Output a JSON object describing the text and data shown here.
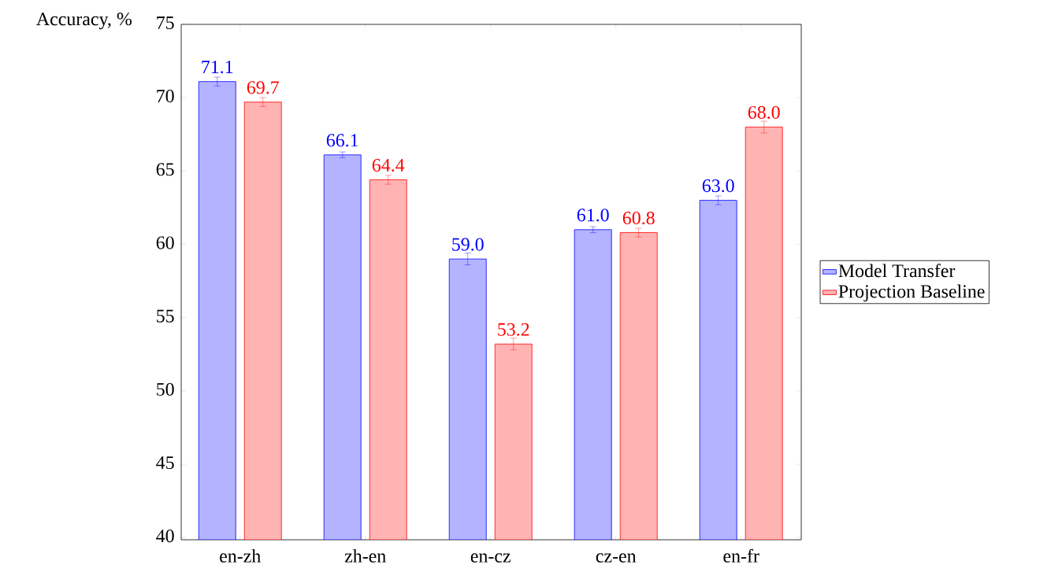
{
  "chart_data": {
    "type": "bar",
    "ylabel": "Accuracy, %",
    "categories": [
      "en-zh",
      "zh-en",
      "en-cz",
      "cz-en",
      "en-fr"
    ],
    "series": [
      {
        "name": "Model Transfer",
        "color": "#b3b3ff",
        "values": [
          71.1,
          66.1,
          59.0,
          61.0,
          63.0
        ],
        "value_labels": [
          "71.1",
          "66.1",
          "59.0",
          "61.0",
          "63.0"
        ],
        "errors": [
          0.3,
          0.2,
          0.4,
          0.2,
          0.3
        ]
      },
      {
        "name": "Projection Baseline",
        "color": "#ffb3b3",
        "values": [
          69.7,
          64.4,
          53.2,
          60.8,
          68.0
        ],
        "value_labels": [
          "69.7",
          "64.4",
          "53.2",
          "60.8",
          "68.0"
        ],
        "errors": [
          0.3,
          0.3,
          0.4,
          0.3,
          0.4
        ]
      }
    ],
    "ylim": [
      39.85,
      75
    ],
    "yticks": [
      40,
      45,
      50,
      55,
      60,
      65,
      70,
      75
    ],
    "legend": "right",
    "grid": false
  }
}
